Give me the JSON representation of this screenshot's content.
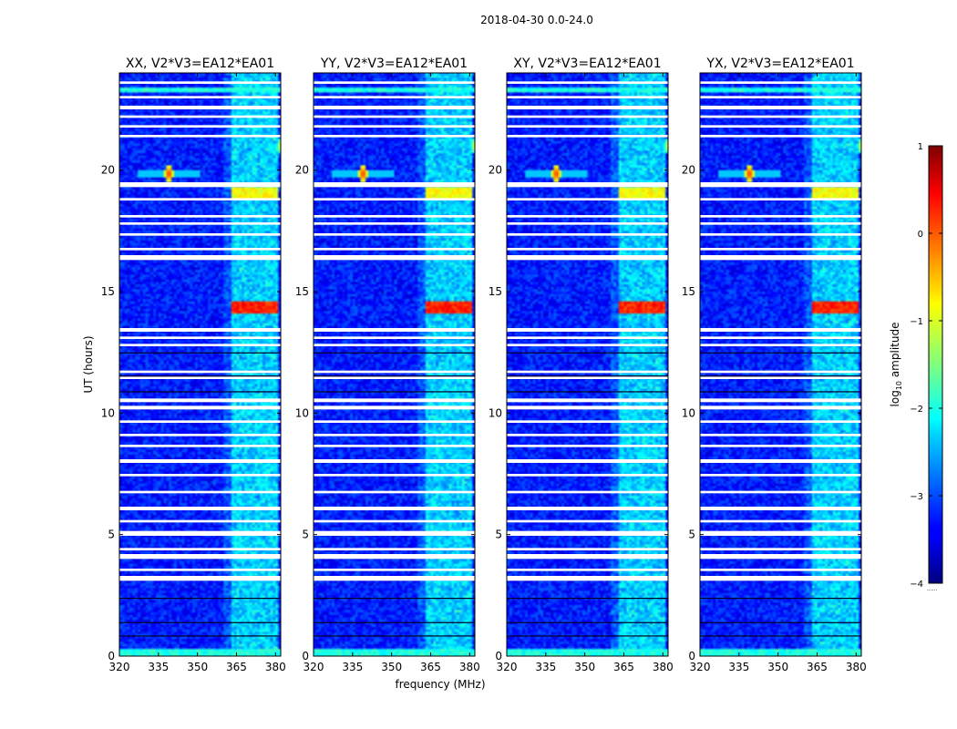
{
  "figure": {
    "suptitle": "2018-04-30 0.0-24.0",
    "shared_xlabel": "frequency (MHz)",
    "shared_ylabel": "UT (hours)"
  },
  "colorbar": {
    "label_prefix": "log",
    "label_sub": "10",
    "label_suffix": " amplitude",
    "ticks": [
      -4,
      -3,
      -2,
      -1,
      0,
      1
    ],
    "tick_labels": [
      "−4",
      "−3",
      "−2",
      "−1",
      "0",
      "1"
    ],
    "range": [
      -4,
      1
    ],
    "colormap": "jet",
    "extra_label": "......"
  },
  "chart_data": {
    "type": "heatmap",
    "xlim": [
      320,
      382
    ],
    "ylim": [
      0,
      24
    ],
    "xticks": [
      320,
      335,
      350,
      365,
      380
    ],
    "yticks": [
      0,
      5,
      10,
      15,
      20
    ],
    "value_range": [
      -4,
      1
    ],
    "panels": [
      {
        "title": "XX, V2*V3=EA12*EA01",
        "label": "XX",
        "seed": 11
      },
      {
        "title": "YY, V2*V3=EA12*EA01",
        "label": "YY",
        "seed": 23
      },
      {
        "title": "XY, V2*V3=EA12*EA01",
        "label": "XY",
        "seed": 37
      },
      {
        "title": "YX, V2*V3=EA12*EA01",
        "label": "YX",
        "seed": 53
      }
    ],
    "flagged_time_bands_hours": [
      [
        3.1,
        3.3
      ],
      [
        3.5,
        3.6
      ],
      [
        4.0,
        4.2
      ],
      [
        4.35,
        4.45
      ],
      [
        4.95,
        5.15
      ],
      [
        5.5,
        5.6
      ],
      [
        6.0,
        6.15
      ],
      [
        6.7,
        6.8
      ],
      [
        7.4,
        7.5
      ],
      [
        7.95,
        8.1
      ],
      [
        8.6,
        8.7
      ],
      [
        9.05,
        9.15
      ],
      [
        9.6,
        9.7
      ],
      [
        10.15,
        10.3
      ],
      [
        10.45,
        10.6
      ],
      [
        11.4,
        11.5
      ],
      [
        11.65,
        11.75
      ],
      [
        12.75,
        12.85
      ],
      [
        13.05,
        13.15
      ],
      [
        13.35,
        13.5
      ],
      [
        16.3,
        16.5
      ],
      [
        16.7,
        16.8
      ],
      [
        17.3,
        17.4
      ],
      [
        17.75,
        17.85
      ],
      [
        18.05,
        18.15
      ],
      [
        18.75,
        18.85
      ],
      [
        19.3,
        19.5
      ],
      [
        21.35,
        21.45
      ],
      [
        21.75,
        21.85
      ],
      [
        22.15,
        22.25
      ],
      [
        22.5,
        22.65
      ],
      [
        22.95,
        23.05
      ],
      [
        23.55,
        23.65
      ]
    ],
    "dark_time_lines_hours": [
      0.85,
      1.4,
      2.4,
      10.9,
      11.55,
      12.5
    ],
    "rfi_frequency_bands_mhz": [
      [
        363,
        367.5
      ],
      [
        368,
        372.5
      ],
      [
        373,
        377
      ],
      [
        377.5,
        381
      ]
    ],
    "rfi_features": [
      {
        "desc": "strong burst",
        "t_range": [
          14.05,
          14.55
        ],
        "f_range": [
          363,
          381
        ],
        "level": 0.2
      },
      {
        "desc": "burst",
        "t_range": [
          18.85,
          19.25
        ],
        "f_range": [
          363,
          381
        ],
        "level": -0.9
      },
      {
        "desc": "point source",
        "t": 19.85,
        "f": 339,
        "level": 0.4
      },
      {
        "desc": "edge source",
        "t": 21.0,
        "f": 382,
        "level": -0.7
      },
      {
        "desc": "low band",
        "t_range": [
          0,
          0.3
        ],
        "f_range": [
          320,
          382
        ],
        "level": -2.0
      },
      {
        "desc": "top band",
        "t_range": [
          23.2,
          23.4
        ],
        "f_range": [
          320,
          382
        ],
        "level": -2.0
      }
    ]
  }
}
